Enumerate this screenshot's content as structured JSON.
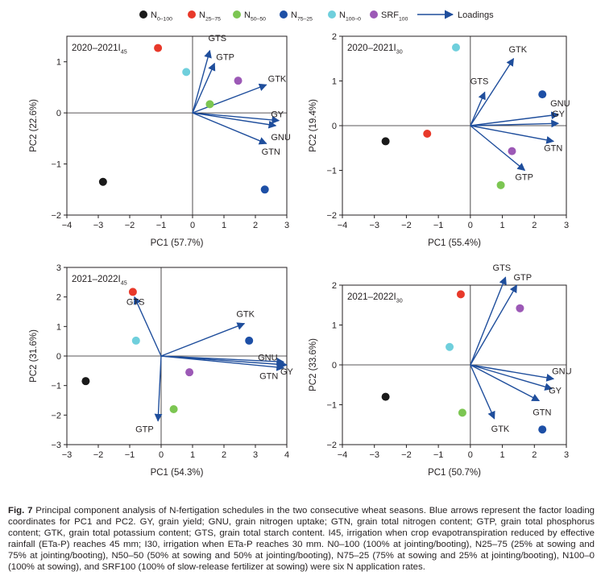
{
  "legend": [
    {
      "base": "N",
      "sub": "0–100",
      "color": "#1a1a1a"
    },
    {
      "base": "N",
      "sub": "25–75",
      "color": "#e8392a"
    },
    {
      "base": "N",
      "sub": "50–50",
      "color": "#7cc652"
    },
    {
      "base": "N",
      "sub": "75–25",
      "color": "#1d4fa6"
    },
    {
      "base": "N",
      "sub": "100–0",
      "color": "#6fcfdc"
    },
    {
      "base": "SRF",
      "sub": "100",
      "color": "#9c59b6"
    }
  ],
  "legend_loadings": "Loadings",
  "arrow_color": "#1f4e9c",
  "caption": {
    "fig_no": "Fig. 7",
    "text": "Principal component analysis of N-fertigation schedules in the two consecutive wheat seasons. Blue arrows represent the factor loading coordinates for PC1 and PC2. GY, grain yield; GNU, grain nitrogen uptake; GTN, grain total nitrogen content; GTP, grain total phosphorus content; GTK, grain total potassium content; GTS, grain total starch content. I45, irrigation when crop evapotranspiration reduced by effective rainfall (ETa-P) reaches 45 mm; I30, irrigation when ETa-P reaches 30 mm. N0–100 (100% at jointing/booting), N25–75 (25% at sowing and 75% at jointing/booting), N50–50 (50% at sowing and 50% at jointing/booting), N75–25 (75% at sowing and 25% at jointing/booting), N100–0 (100% at sowing), and SRF100 (100% of slow-release fertilizer at sowing) were six N application rates."
  },
  "chart_data": [
    {
      "type": "scatter",
      "title": "2020–2021I45",
      "title_base": "2020–2021I",
      "title_sub": "45",
      "xlabel": "PC1 (57.7%)",
      "ylabel": "PC2 (22.6%)",
      "xlim": [
        -4,
        3
      ],
      "ylim": [
        -2,
        1.5
      ],
      "xticks": [
        -4,
        -3,
        -2,
        -1,
        0,
        1,
        2,
        3
      ],
      "yticks": [
        -2,
        -1,
        0,
        1
      ],
      "points": [
        {
          "name": "N0–100",
          "x": -2.85,
          "y": -1.35
        },
        {
          "name": "N25–75",
          "x": -1.1,
          "y": 1.27
        },
        {
          "name": "N50–50",
          "x": 0.55,
          "y": 0.17
        },
        {
          "name": "N75–25",
          "x": 2.3,
          "y": -1.5
        },
        {
          "name": "N100–0",
          "x": -0.2,
          "y": 0.8
        },
        {
          "name": "SRF100",
          "x": 1.45,
          "y": 0.63
        }
      ],
      "loadings": [
        {
          "label": "GTS",
          "x": 0.55,
          "y": 1.22
        },
        {
          "label": "GTP",
          "x": 0.7,
          "y": 0.97
        },
        {
          "label": "GTK",
          "x": 2.35,
          "y": 0.55
        },
        {
          "label": "GY",
          "x": 2.75,
          "y": -0.15
        },
        {
          "label": "GNU",
          "x": 2.65,
          "y": -0.25
        },
        {
          "label": "GTN",
          "x": 2.35,
          "y": -0.6
        }
      ]
    },
    {
      "type": "scatter",
      "title": "2020–2021I30",
      "title_base": "2020–2021I",
      "title_sub": "30",
      "xlabel": "PC1 (55.4%)",
      "ylabel": "PC2 (19.4%)",
      "xlim": [
        -4,
        3
      ],
      "ylim": [
        -2,
        2
      ],
      "xticks": [
        -4,
        -3,
        -2,
        -1,
        0,
        1,
        2,
        3
      ],
      "yticks": [
        -2,
        -1,
        0,
        1,
        2
      ],
      "points": [
        {
          "name": "N0–100",
          "x": -2.65,
          "y": -0.35
        },
        {
          "name": "N25–75",
          "x": -1.35,
          "y": -0.18
        },
        {
          "name": "N50–50",
          "x": 0.95,
          "y": -1.33
        },
        {
          "name": "N75–25",
          "x": 2.25,
          "y": 0.7
        },
        {
          "name": "N100–0",
          "x": -0.45,
          "y": 1.75
        },
        {
          "name": "SRF100",
          "x": 1.3,
          "y": -0.57
        }
      ],
      "loadings": [
        {
          "label": "GTK",
          "x": 1.35,
          "y": 1.5
        },
        {
          "label": "GTS",
          "x": 0.45,
          "y": 0.75
        },
        {
          "label": "GNU",
          "x": 2.75,
          "y": 0.25
        },
        {
          "label": "GY",
          "x": 2.75,
          "y": 0.05
        },
        {
          "label": "GTN",
          "x": 2.6,
          "y": -0.35
        },
        {
          "label": "GTP",
          "x": 1.7,
          "y": -1.0
        }
      ]
    },
    {
      "type": "scatter",
      "title": "2021–2022I45",
      "title_base": "2021–2022I",
      "title_sub": "45",
      "xlabel": "PC1 (54.3%)",
      "ylabel": "PC2 (31.6%)",
      "xlim": [
        -3,
        4
      ],
      "ylim": [
        -3,
        3
      ],
      "xticks": [
        -3,
        -2,
        -1,
        0,
        1,
        2,
        3,
        4
      ],
      "yticks": [
        -3,
        -2,
        -1,
        0,
        1,
        2,
        3
      ],
      "points": [
        {
          "name": "N0–100",
          "x": -2.4,
          "y": -0.85
        },
        {
          "name": "N25–75",
          "x": -0.9,
          "y": 2.17
        },
        {
          "name": "N50–50",
          "x": 0.4,
          "y": -1.8
        },
        {
          "name": "N75–25",
          "x": 2.8,
          "y": 0.52
        },
        {
          "name": "N100–0",
          "x": -0.8,
          "y": 0.52
        },
        {
          "name": "SRF100",
          "x": 0.9,
          "y": -0.55
        }
      ],
      "loadings": [
        {
          "label": "GTS",
          "x": -0.85,
          "y": 2.0
        },
        {
          "label": "GTK",
          "x": 2.65,
          "y": 1.1
        },
        {
          "label": "GNU",
          "x": 3.9,
          "y": -0.2
        },
        {
          "label": "GY",
          "x": 4.0,
          "y": -0.3
        },
        {
          "label": "GTN",
          "x": 3.9,
          "y": -0.4
        },
        {
          "label": "GTP",
          "x": -0.1,
          "y": -2.2
        }
      ]
    },
    {
      "type": "scatter",
      "title": "2021–2022I30",
      "title_base": "2021–2022I",
      "title_sub": "30",
      "xlabel": "PC1 (50.7%)",
      "ylabel": "PC2 (33.6%)",
      "xlim": [
        -4,
        3
      ],
      "ylim": [
        -2,
        2
      ],
      "xticks": [
        -4,
        -3,
        -2,
        -1,
        0,
        1,
        2,
        3
      ],
      "yticks": [
        -2,
        -1,
        0,
        1,
        2
      ],
      "points": [
        {
          "name": "N0–100",
          "x": -2.65,
          "y": -0.8
        },
        {
          "name": "N25–75",
          "x": -0.3,
          "y": 1.77
        },
        {
          "name": "N50–50",
          "x": -0.25,
          "y": -1.2
        },
        {
          "name": "N75–25",
          "x": 2.25,
          "y": -1.62
        },
        {
          "name": "N100–0",
          "x": -0.65,
          "y": 0.45
        },
        {
          "name": "SRF100",
          "x": 1.55,
          "y": 1.42
        }
      ],
      "loadings": [
        {
          "label": "GTS",
          "x": 1.1,
          "y": 2.2
        },
        {
          "label": "GTP",
          "x": 1.45,
          "y": 2.0
        },
        {
          "label": "GNU",
          "x": 2.6,
          "y": -0.35
        },
        {
          "label": "GY",
          "x": 2.55,
          "y": -0.6
        },
        {
          "label": "GTN",
          "x": 2.15,
          "y": -0.9
        },
        {
          "label": "GTK",
          "x": 0.75,
          "y": -1.35
        }
      ]
    }
  ]
}
